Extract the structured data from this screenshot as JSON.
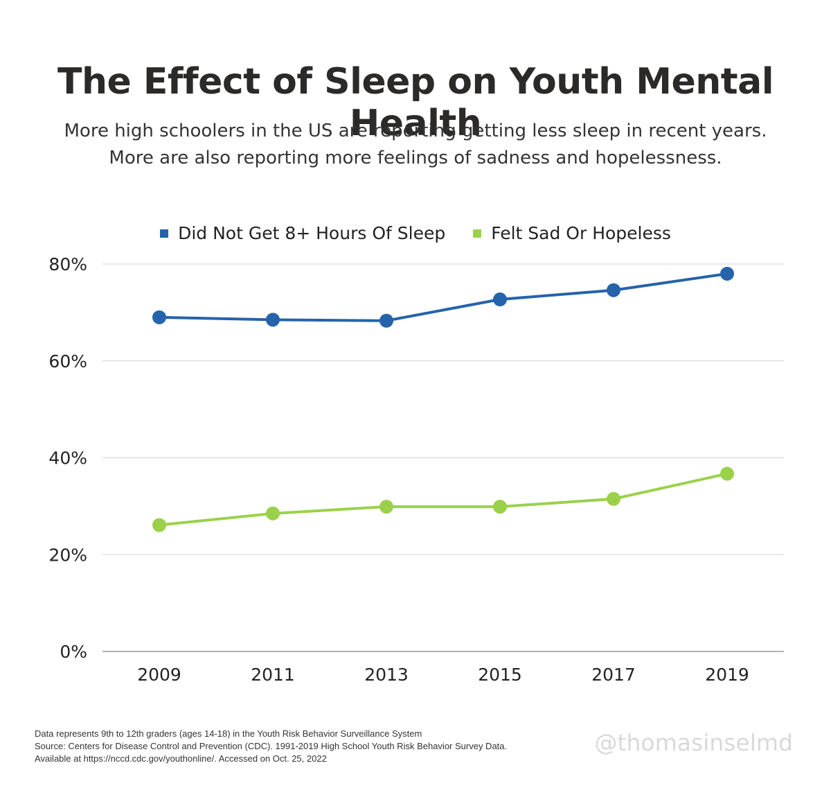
{
  "title": "The Effect of Sleep on Youth Mental Health",
  "subtitle": "More high schoolers in the US are reporting getting less sleep in recent years. More are also reporting more feelings of sadness and hopelessness.",
  "footnote": {
    "line1": "Data represents 9th to 12th graders (ages 14-18) in the Youth Risk Behavior Surveillance System",
    "line2": "Source: Centers for Disease Control and Prevention (CDC). 1991-2019 High School Youth Risk Behavior Survey Data.",
    "line3": "Available at https://nccd.cdc.gov/youthonline/. Accessed on Oct. 25, 2022"
  },
  "handle": "@thomasinselmd",
  "chart_data": {
    "type": "line",
    "categories": [
      "2009",
      "2011",
      "2013",
      "2015",
      "2017",
      "2019"
    ],
    "series": [
      {
        "name": "Did Not Get 8+ Hours Of Sleep",
        "color": "#2563ab",
        "values": [
          69.0,
          68.5,
          68.3,
          72.7,
          74.6,
          78.0
        ]
      },
      {
        "name": "Felt Sad Or Hopeless",
        "color": "#9bd14a",
        "values": [
          26.1,
          28.5,
          29.9,
          29.9,
          31.5,
          36.7
        ]
      }
    ],
    "yticks": [
      "0%",
      "20%",
      "40%",
      "60%",
      "80%"
    ],
    "ylim": [
      0,
      80
    ],
    "grid": true,
    "legend_position": "top-center"
  }
}
